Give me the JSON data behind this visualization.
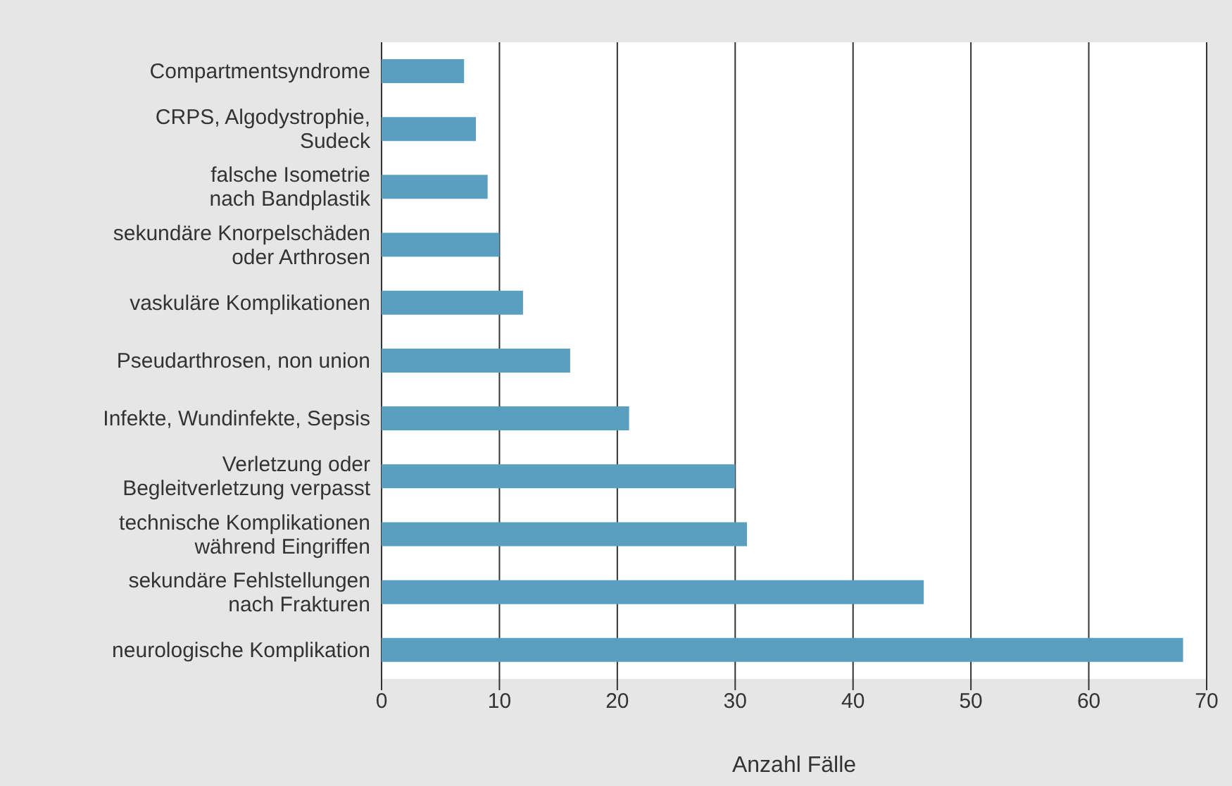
{
  "chart_data": {
    "type": "bar",
    "orientation": "horizontal",
    "xlabel": "Anzahl Fälle",
    "categories": [
      "Compartmentsyndrome",
      "CRPS, Algodystrophie,\nSudeck",
      "falsche Isometrie\nnach Bandplastik",
      "sekundäre Knorpelschäden\noder Arthrosen",
      "vaskuläre Komplikationen",
      "Pseudarthrosen, non union",
      "Infekte, Wundinfekte, Sepsis",
      "Verletzung oder\nBegleitverletzung verpasst",
      "technische Komplikationen\nwährend Eingriffen",
      "sekundäre Fehlstellungen\nnach Frakturen",
      "neurologische Komplikation"
    ],
    "values": [
      7,
      8,
      9,
      10,
      12,
      16,
      21,
      30,
      31,
      46,
      68
    ],
    "color": "#5a9ec0",
    "xlim": [
      0,
      70
    ],
    "xticks": [
      0,
      10,
      20,
      30,
      40,
      50,
      60,
      70
    ],
    "grid": "x"
  }
}
